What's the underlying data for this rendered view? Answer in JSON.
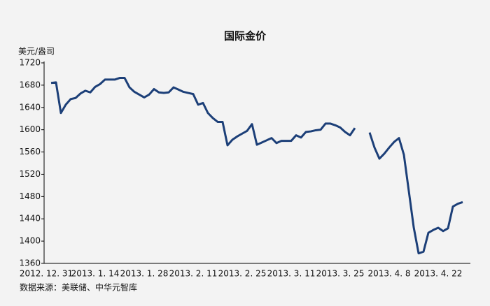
{
  "chart_data": {
    "type": "line",
    "title": "国际金价",
    "y_label": "美元/盎司",
    "source": "数据来源：美联储、中华元智库",
    "categories": [
      "2012. 12. 31",
      null,
      null,
      null,
      null,
      null,
      null,
      null,
      null,
      null,
      "2013. 1. 14",
      null,
      null,
      null,
      null,
      null,
      null,
      null,
      null,
      null,
      "2013. 1. 28",
      null,
      null,
      null,
      null,
      null,
      null,
      null,
      null,
      null,
      "2013. 2. 11",
      null,
      null,
      null,
      null,
      null,
      null,
      null,
      null,
      null,
      "2013. 2. 25",
      null,
      null,
      null,
      null,
      null,
      null,
      null,
      null,
      null,
      "2013. 3. 11",
      null,
      null,
      null,
      null,
      null,
      null,
      null,
      null,
      null,
      "2013. 3. 25",
      null,
      null,
      null,
      null,
      null,
      null,
      null,
      null,
      null,
      "2013. 4. 8",
      null,
      null,
      null,
      null,
      null,
      null,
      null,
      null,
      null,
      "2013. 4. 22",
      null,
      null,
      null,
      null,
      null
    ],
    "series": [
      {
        "color": "#1c3f78",
        "values": [
          null,
          1684,
          1685,
          1630,
          1645,
          1655,
          1657,
          1665,
          1670,
          1667,
          1677,
          1682,
          1690,
          1690,
          1690,
          1693,
          1693,
          1676,
          1668,
          1663,
          1658,
          1663,
          1673,
          1667,
          1666,
          1667,
          1676,
          1672,
          1668,
          1666,
          1664,
          1645,
          1648,
          1630,
          1621,
          1614,
          1614,
          1572,
          1582,
          1588,
          1593,
          1598,
          1610,
          1573,
          1577,
          1581,
          1585,
          1576,
          1580,
          1580,
          1580,
          1590,
          1586,
          1596,
          1597,
          1599,
          1600,
          1611,
          1611,
          1608,
          1604,
          1596,
          1590,
          1603,
          null,
          null,
          1595,
          1568,
          1548,
          1557,
          1568,
          1578,
          1585,
          1555,
          1490,
          1425,
          1378,
          1381,
          1415,
          1420,
          1424,
          1418,
          1423,
          1462,
          1467,
          1470
        ]
      }
    ],
    "ylim": [
      1360,
      1720
    ],
    "yticks": [
      1360,
      1400,
      1440,
      1480,
      1520,
      1560,
      1600,
      1640,
      1680,
      1720
    ]
  }
}
